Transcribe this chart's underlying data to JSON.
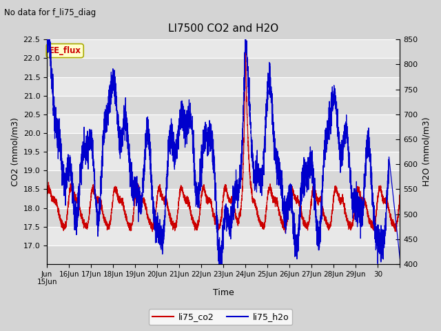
{
  "title": "LI7500 CO2 and H2O",
  "subtitle": "No data for f_li75_diag",
  "xlabel": "Time",
  "ylabel_left": "CO2 (mmol/m3)",
  "ylabel_right": "H2O (mmol/m3)",
  "ylim_left": [
    16.5,
    22.5
  ],
  "ylim_right": [
    400,
    850
  ],
  "yticks_left": [
    17.0,
    17.5,
    18.0,
    18.5,
    19.0,
    19.5,
    20.0,
    20.5,
    21.0,
    21.5,
    22.0,
    22.5
  ],
  "yticks_right": [
    400,
    450,
    500,
    550,
    600,
    650,
    700,
    750,
    800,
    850
  ],
  "color_co2": "#cc0000",
  "color_h2o": "#0000cc",
  "legend_labels": [
    "li75_co2",
    "li75_h2o"
  ],
  "inset_label": "EE_flux",
  "inset_label_color": "#cc0000",
  "fig_bg_color": "#d4d4d4",
  "plot_bg_color": "#e8e8e8",
  "band_color_light": "#e8e8e8",
  "band_color_dark": "#d8d8d8",
  "grid_line_color": "#ffffff",
  "n_points": 5000,
  "seed": 12345
}
